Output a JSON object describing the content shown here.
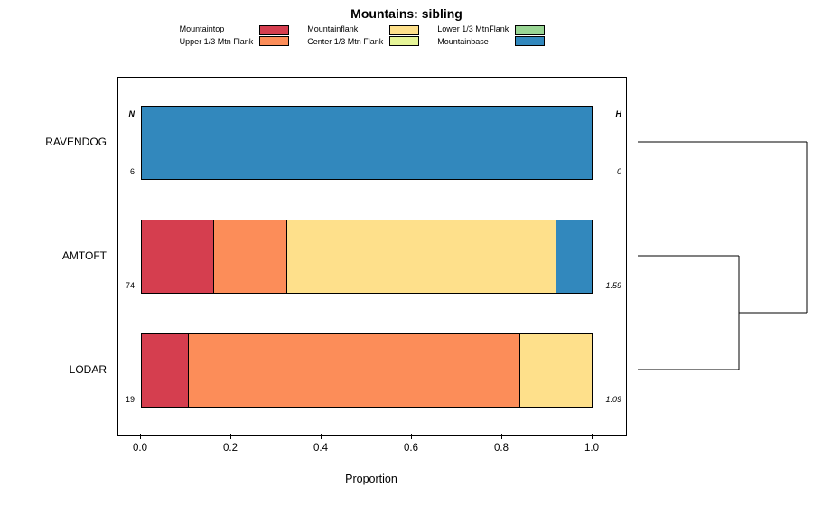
{
  "chart_data": {
    "type": "bar",
    "orientation": "horizontal-stacked",
    "title": "Mountains: sibling",
    "xlabel": "Proportion",
    "xlim": [
      0,
      1
    ],
    "x_ticks": [
      "0.0",
      "0.2",
      "0.4",
      "0.6",
      "0.8",
      "1.0"
    ],
    "grid": false,
    "legend_position": "top",
    "n_header": "N",
    "h_header": "H",
    "categories": [
      "Mountaintop",
      "Upper 1/3 Mtn Flank",
      "Mountainflank",
      "Center 1/3 Mtn Flank",
      "Lower 1/3 MtnFlank",
      "Mountainbase"
    ],
    "colors": [
      "#D53E4F",
      "#FC8D59",
      "#FEE08B",
      "#E6F598",
      "#99D594",
      "#3288BD"
    ],
    "legend_columns": [
      [
        {
          "label": "Mountaintop",
          "color": "#D53E4F"
        },
        {
          "label": "Upper 1/3 Mtn Flank",
          "color": "#FC8D59"
        }
      ],
      [
        {
          "label": "Mountainflank",
          "color": "#FEE08B"
        },
        {
          "label": "Center 1/3 Mtn Flank",
          "color": "#E6F598"
        }
      ],
      [
        {
          "label": "Lower 1/3 MtnFlank",
          "color": "#99D594"
        },
        {
          "label": "Mountainbase",
          "color": "#3288BD"
        }
      ]
    ],
    "rows": [
      {
        "label": "RAVENDOG",
        "n": "6",
        "h": "0",
        "values": [
          0,
          0,
          0,
          0,
          0,
          1.0
        ]
      },
      {
        "label": "AMTOFT",
        "n": "74",
        "h": "1.59",
        "values": [
          0.162,
          0.162,
          0.595,
          0,
          0,
          0.081
        ]
      },
      {
        "label": "LODAR",
        "n": "19",
        "h": "1.09",
        "values": [
          0.105,
          0.735,
          0.16,
          0,
          0,
          0
        ]
      }
    ],
    "dendrogram": {
      "merges": [
        {
          "a": "AMTOFT",
          "b": "LODAR",
          "pos": 0.6
        },
        {
          "a": "m0",
          "b": "RAVENDOG",
          "pos": 1.0
        }
      ]
    }
  }
}
